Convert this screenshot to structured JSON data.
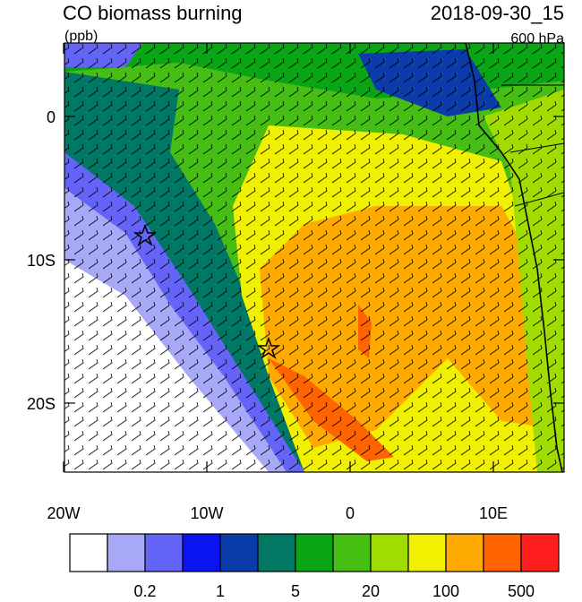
{
  "header": {
    "title": "CO biomass burning",
    "units": "(ppb)",
    "time": "2018-09-30_15",
    "level": "600 hPa"
  },
  "map": {
    "lat_ticks": [
      0,
      {
        "value": -10,
        "label": "10S"
      },
      {
        "value": -20,
        "label": "20S"
      }
    ],
    "lon_ticks": [
      {
        "value": -20,
        "label": "20W"
      },
      {
        "value": -10,
        "label": "10W"
      },
      0,
      {
        "value": 10,
        "label": "10E"
      }
    ]
  },
  "colorbar": {
    "colors": [
      "#ffffff",
      "#a8a8f8",
      "#6464f8",
      "#0a14f0",
      "#0a3caa",
      "#007864",
      "#0aa514",
      "#46be14",
      "#a0dc00",
      "#f0f000",
      "#ffaa00",
      "#ff6400",
      "#ff1e1e"
    ],
    "labels": [
      "0.2",
      "1",
      "5",
      "20",
      "100",
      "500"
    ]
  }
}
